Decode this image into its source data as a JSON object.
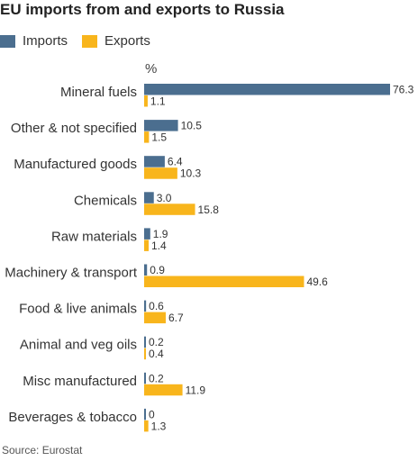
{
  "title": "EU imports from and exports to Russia",
  "source": "Source: Eurostat",
  "unit_label": "%",
  "colors": {
    "imports": "#4b6e8f",
    "exports": "#f8b51c"
  },
  "chart_data": {
    "type": "bar",
    "orientation": "horizontal",
    "title": "EU imports from and exports to Russia",
    "unit": "%",
    "legend_position": "top-left",
    "categories": [
      "Mineral fuels",
      "Other & not specified",
      "Manufactured goods",
      "Chemicals",
      "Raw materials",
      "Machinery & transport",
      "Food & live animals",
      "Animal and veg oils",
      "Misc manufactured",
      "Beverages & tobacco"
    ],
    "series": [
      {
        "name": "Imports",
        "values": [
          76.3,
          10.5,
          6.4,
          3.0,
          1.9,
          0.9,
          0.6,
          0.2,
          0.2,
          0
        ]
      },
      {
        "name": "Exports",
        "values": [
          1.1,
          1.5,
          10.3,
          15.8,
          1.4,
          49.6,
          6.7,
          0.4,
          11.9,
          1.3
        ]
      }
    ],
    "value_labels": [
      [
        "76.3",
        "10.5",
        "6.4",
        "3.0",
        "1.9",
        "0.9",
        "0.6",
        "0.2",
        "0.2",
        "0"
      ],
      [
        "1.1",
        "1.5",
        "10.3",
        "15.8",
        "1.4",
        "49.6",
        "6.7",
        "0.4",
        "11.9",
        "1.3"
      ]
    ],
    "xlim": [
      0,
      76.3
    ],
    "grid": false
  }
}
